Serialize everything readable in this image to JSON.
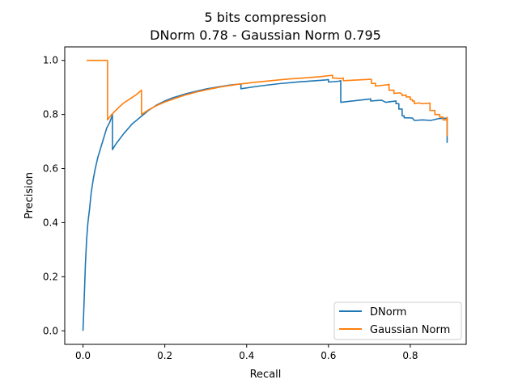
{
  "chart_data": {
    "type": "line",
    "title": "5 bits compression",
    "subtitle": "DNorm 0.78 - Gaussian Norm 0.795",
    "xlabel": "Recall",
    "ylabel": "Precision",
    "xlim": [
      -0.0446,
      0.9366
    ],
    "ylim": [
      -0.05,
      1.05
    ],
    "xticks": [
      0.0,
      0.2,
      0.4,
      0.6,
      0.8
    ],
    "xtick_labels": [
      "0.0",
      "0.2",
      "0.4",
      "0.6",
      "0.8"
    ],
    "yticks": [
      0.0,
      0.2,
      0.4,
      0.6,
      0.8,
      1.0
    ],
    "ytick_labels": [
      "0.0",
      "0.2",
      "0.4",
      "0.6",
      "0.8",
      "1.0"
    ],
    "grid": false,
    "legend_position": "lower-right",
    "series": [
      {
        "name": "DNorm",
        "color": "#1f77b4",
        "points": [
          [
            0.0,
            0.0
          ],
          [
            0.003,
            0.12
          ],
          [
            0.006,
            0.25
          ],
          [
            0.009,
            0.34
          ],
          [
            0.012,
            0.4
          ],
          [
            0.016,
            0.45
          ],
          [
            0.02,
            0.51
          ],
          [
            0.025,
            0.56
          ],
          [
            0.03,
            0.6
          ],
          [
            0.036,
            0.64
          ],
          [
            0.042,
            0.67
          ],
          [
            0.05,
            0.71
          ],
          [
            0.058,
            0.75
          ],
          [
            0.065,
            0.77
          ],
          [
            0.07,
            0.79
          ],
          [
            0.072,
            0.8
          ],
          [
            0.072,
            0.67
          ],
          [
            0.08,
            0.69
          ],
          [
            0.09,
            0.71
          ],
          [
            0.1,
            0.73
          ],
          [
            0.12,
            0.765
          ],
          [
            0.14,
            0.79
          ],
          [
            0.16,
            0.815
          ],
          [
            0.18,
            0.835
          ],
          [
            0.2,
            0.85
          ],
          [
            0.22,
            0.862
          ],
          [
            0.25,
            0.876
          ],
          [
            0.28,
            0.887
          ],
          [
            0.3,
            0.894
          ],
          [
            0.33,
            0.902
          ],
          [
            0.36,
            0.909
          ],
          [
            0.386,
            0.913
          ],
          [
            0.386,
            0.895
          ],
          [
            0.43,
            0.905
          ],
          [
            0.48,
            0.914
          ],
          [
            0.53,
            0.921
          ],
          [
            0.58,
            0.926
          ],
          [
            0.595,
            0.928
          ],
          [
            0.6,
            0.929
          ],
          [
            0.6,
            0.92
          ],
          [
            0.625,
            0.923
          ],
          [
            0.63,
            0.925
          ],
          [
            0.63,
            0.845
          ],
          [
            0.7,
            0.857
          ],
          [
            0.703,
            0.858
          ],
          [
            0.703,
            0.85
          ],
          [
            0.73,
            0.853
          ],
          [
            0.74,
            0.845
          ],
          [
            0.755,
            0.848
          ],
          [
            0.765,
            0.85
          ],
          [
            0.765,
            0.84
          ],
          [
            0.772,
            0.84
          ],
          [
            0.772,
            0.82
          ],
          [
            0.78,
            0.82
          ],
          [
            0.78,
            0.795
          ],
          [
            0.785,
            0.795
          ],
          [
            0.785,
            0.788
          ],
          [
            0.805,
            0.787
          ],
          [
            0.81,
            0.778
          ],
          [
            0.83,
            0.78
          ],
          [
            0.85,
            0.778
          ],
          [
            0.87,
            0.785
          ],
          [
            0.885,
            0.786
          ],
          [
            0.89,
            0.786
          ],
          [
            0.89,
            0.695
          ]
        ]
      },
      {
        "name": "Gaussian Norm",
        "color": "#ff7f0e",
        "points": [
          [
            0.009,
            1.0
          ],
          [
            0.06,
            1.0
          ],
          [
            0.06,
            0.78
          ],
          [
            0.07,
            0.8
          ],
          [
            0.08,
            0.815
          ],
          [
            0.09,
            0.83
          ],
          [
            0.1,
            0.843
          ],
          [
            0.11,
            0.853
          ],
          [
            0.12,
            0.863
          ],
          [
            0.13,
            0.873
          ],
          [
            0.143,
            0.89
          ],
          [
            0.143,
            0.8
          ],
          [
            0.16,
            0.817
          ],
          [
            0.18,
            0.833
          ],
          [
            0.2,
            0.846
          ],
          [
            0.22,
            0.857
          ],
          [
            0.25,
            0.872
          ],
          [
            0.28,
            0.884
          ],
          [
            0.31,
            0.894
          ],
          [
            0.34,
            0.903
          ],
          [
            0.38,
            0.912
          ],
          [
            0.42,
            0.919
          ],
          [
            0.46,
            0.925
          ],
          [
            0.5,
            0.931
          ],
          [
            0.54,
            0.935
          ],
          [
            0.58,
            0.94
          ],
          [
            0.61,
            0.945
          ],
          [
            0.61,
            0.935
          ],
          [
            0.63,
            0.933
          ],
          [
            0.636,
            0.935
          ],
          [
            0.636,
            0.925
          ],
          [
            0.7,
            0.93
          ],
          [
            0.705,
            0.93
          ],
          [
            0.705,
            0.915
          ],
          [
            0.715,
            0.915
          ],
          [
            0.715,
            0.905
          ],
          [
            0.745,
            0.91
          ],
          [
            0.748,
            0.912
          ],
          [
            0.748,
            0.89
          ],
          [
            0.76,
            0.89
          ],
          [
            0.76,
            0.878
          ],
          [
            0.775,
            0.88
          ],
          [
            0.78,
            0.875
          ],
          [
            0.78,
            0.87
          ],
          [
            0.79,
            0.872
          ],
          [
            0.79,
            0.865
          ],
          [
            0.8,
            0.865
          ],
          [
            0.8,
            0.855
          ],
          [
            0.805,
            0.855
          ],
          [
            0.805,
            0.85
          ],
          [
            0.81,
            0.85
          ],
          [
            0.81,
            0.84
          ],
          [
            0.82,
            0.843
          ],
          [
            0.83,
            0.84
          ],
          [
            0.848,
            0.842
          ],
          [
            0.848,
            0.815
          ],
          [
            0.86,
            0.815
          ],
          [
            0.86,
            0.8
          ],
          [
            0.872,
            0.8
          ],
          [
            0.872,
            0.79
          ],
          [
            0.88,
            0.79
          ],
          [
            0.88,
            0.78
          ],
          [
            0.888,
            0.78
          ],
          [
            0.89,
            0.79
          ],
          [
            0.89,
            0.72
          ]
        ]
      }
    ]
  }
}
